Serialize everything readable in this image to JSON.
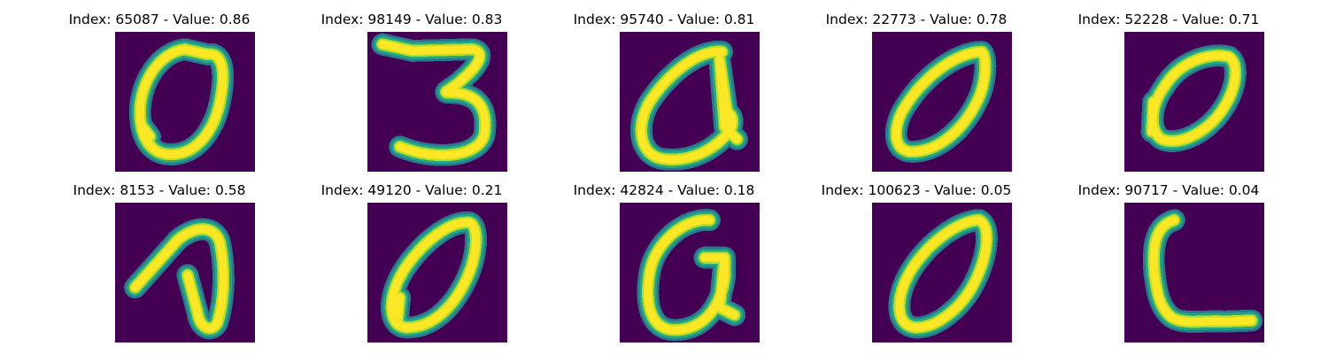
{
  "colors": {
    "background": "#440154",
    "stroke_mid": "#22a884",
    "stroke_outer": "#2a788e",
    "stroke_core": "#fde725",
    "stroke_bright": "#b5de2b"
  },
  "panels": [
    {
      "index": "65087",
      "value": "0.86",
      "title": "Index: 65087 - Value: 0.86",
      "glyph": "zero-tall"
    },
    {
      "index": "98149",
      "value": "0.83",
      "title": "Index: 98149 - Value: 0.83",
      "glyph": "three"
    },
    {
      "index": "95740",
      "value": "0.81",
      "title": "Index: 95740 - Value: 0.81",
      "glyph": "a-loop"
    },
    {
      "index": "22773",
      "value": "0.78",
      "title": "Index: 22773 - Value: 0.78",
      "glyph": "zero-slanted"
    },
    {
      "index": "52228",
      "value": "0.71",
      "title": "Index: 52228 - Value: 0.71",
      "glyph": "zero-round"
    },
    {
      "index": "8153",
      "value": "0.58",
      "title": "Index: 8153 - Value: 0.58",
      "glyph": "hook"
    },
    {
      "index": "49120",
      "value": "0.21",
      "title": "Index: 49120 - Value: 0.21",
      "glyph": "zero-oval"
    },
    {
      "index": "42824",
      "value": "0.18",
      "title": "Index: 42824 - Value: 0.18",
      "glyph": "g-loop"
    },
    {
      "index": "100623",
      "value": "0.05",
      "title": "Index: 100623 - Value: 0.05",
      "glyph": "zero-egg"
    },
    {
      "index": "90717",
      "value": "0.04",
      "title": "Index: 90717 - Value: 0.04",
      "glyph": "c-open"
    }
  ]
}
